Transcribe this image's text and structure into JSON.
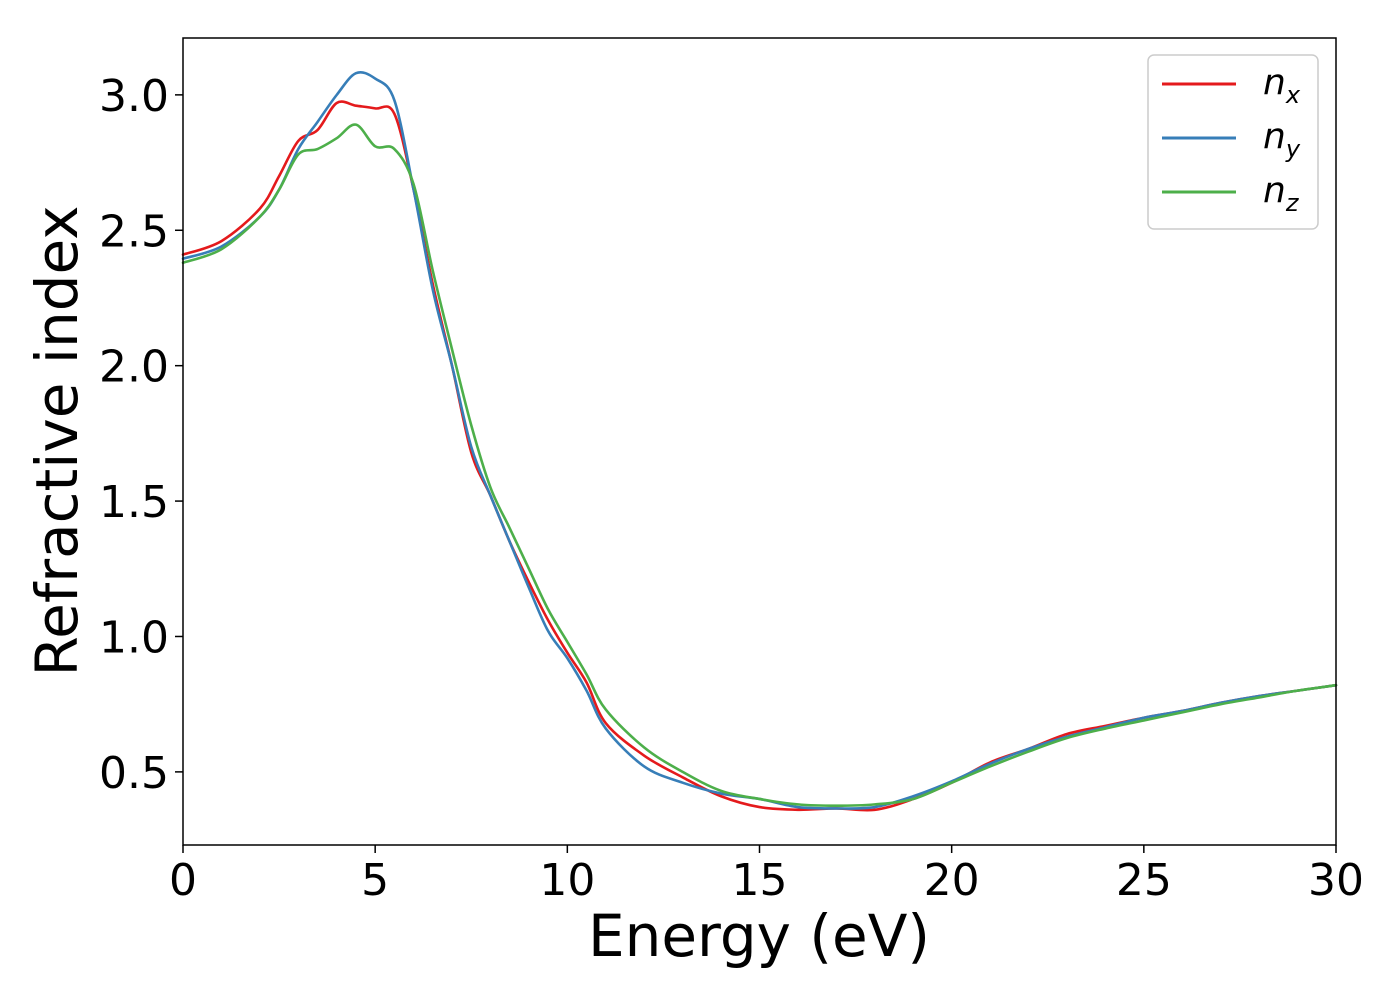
{
  "chart_data": {
    "type": "line",
    "title": "",
    "xlabel": "Energy (eV)",
    "ylabel": "Refractive index",
    "xlim": [
      0,
      30
    ],
    "ylim": [
      0.23,
      3.21
    ],
    "xticks": [
      0,
      5,
      10,
      15,
      20,
      25,
      30
    ],
    "xtick_labels": [
      "0",
      "5",
      "10",
      "15",
      "20",
      "25",
      "30"
    ],
    "yticks": [
      0.5,
      1.0,
      1.5,
      2.0,
      2.5,
      3.0
    ],
    "ytick_labels": [
      "0.5",
      "1.0",
      "1.5",
      "2.0",
      "2.5",
      "3.0"
    ],
    "grid": false,
    "legend_position": "top-right",
    "series": [
      {
        "name": "n_x",
        "label_base": "n",
        "label_sub": "x",
        "color": "#e41a1c",
        "x": [
          0,
          1,
          2,
          2.5,
          3,
          3.5,
          4,
          4.5,
          5,
          5.5,
          6,
          6.5,
          7,
          7.5,
          8,
          8.5,
          9,
          9.5,
          10,
          10.5,
          11,
          12,
          13,
          14,
          15,
          16,
          17,
          18,
          19,
          20,
          21,
          22,
          23,
          24,
          25,
          26,
          27,
          28,
          29,
          30
        ],
        "y": [
          2.41,
          2.46,
          2.58,
          2.7,
          2.83,
          2.87,
          2.97,
          2.96,
          2.95,
          2.93,
          2.65,
          2.3,
          2.0,
          1.68,
          1.52,
          1.35,
          1.2,
          1.06,
          0.94,
          0.83,
          0.68,
          0.56,
          0.48,
          0.41,
          0.37,
          0.36,
          0.365,
          0.36,
          0.4,
          0.46,
          0.535,
          0.585,
          0.64,
          0.67,
          0.7,
          0.725,
          0.755,
          0.78,
          0.8,
          0.82
        ]
      },
      {
        "name": "n_y",
        "label_base": "n",
        "label_sub": "y",
        "color": "#377eb8",
        "x": [
          0,
          1,
          2,
          2.5,
          3,
          3.5,
          4,
          4.5,
          5,
          5.5,
          6,
          6.5,
          7,
          7.5,
          8,
          8.5,
          9,
          9.5,
          10,
          10.5,
          11,
          12,
          13,
          14,
          15,
          16,
          17,
          18,
          19,
          20,
          21,
          22,
          23,
          24,
          25,
          26,
          27,
          28,
          29,
          30
        ],
        "y": [
          2.395,
          2.44,
          2.55,
          2.65,
          2.8,
          2.9,
          3.0,
          3.08,
          3.06,
          2.98,
          2.65,
          2.28,
          2.0,
          1.7,
          1.52,
          1.35,
          1.18,
          1.02,
          0.92,
          0.8,
          0.66,
          0.52,
          0.46,
          0.42,
          0.4,
          0.37,
          0.365,
          0.37,
          0.41,
          0.465,
          0.53,
          0.585,
          0.63,
          0.665,
          0.7,
          0.725,
          0.755,
          0.78,
          0.8,
          0.82
        ]
      },
      {
        "name": "n_z",
        "label_base": "n",
        "label_sub": "z",
        "color": "#4daf4a",
        "x": [
          0,
          1,
          2,
          2.5,
          3,
          3.5,
          4,
          4.5,
          5,
          5.5,
          6,
          6.5,
          7,
          7.5,
          8,
          8.5,
          9,
          9.5,
          10,
          10.5,
          11,
          12,
          13,
          14,
          15,
          16,
          17,
          18,
          19,
          20,
          21,
          22,
          23,
          24,
          25,
          26,
          27,
          28,
          29,
          30
        ],
        "y": [
          2.38,
          2.43,
          2.55,
          2.65,
          2.78,
          2.8,
          2.84,
          2.89,
          2.81,
          2.8,
          2.67,
          2.35,
          2.06,
          1.78,
          1.55,
          1.4,
          1.25,
          1.1,
          0.98,
          0.86,
          0.73,
          0.59,
          0.5,
          0.43,
          0.4,
          0.38,
          0.375,
          0.38,
          0.4,
          0.46,
          0.52,
          0.575,
          0.625,
          0.66,
          0.69,
          0.72,
          0.75,
          0.775,
          0.8,
          0.82
        ]
      }
    ]
  }
}
